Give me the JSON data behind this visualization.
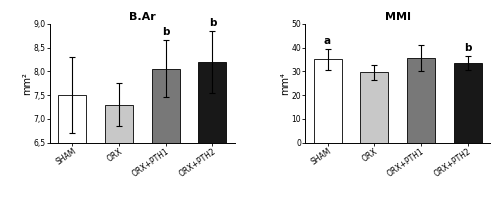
{
  "bar_chart1": {
    "title": "B.Ar",
    "ylabel": "mm²",
    "categories": [
      "SHAM",
      "ORX",
      "ORX+PTH1",
      "ORX+PTH2"
    ],
    "values": [
      7.5,
      7.3,
      8.05,
      8.2
    ],
    "errors": [
      0.8,
      0.45,
      0.6,
      0.65
    ],
    "colors": [
      "#ffffff",
      "#c8c8c8",
      "#787878",
      "#181818"
    ],
    "ylim": [
      6.5,
      9.0
    ],
    "yticks": [
      6.5,
      7.0,
      7.5,
      8.0,
      8.5,
      9.0
    ],
    "ytick_labels": [
      "6,5",
      "7,0",
      "7,5",
      "8,0",
      "8,5",
      "9,0"
    ],
    "annotations": [
      {
        "text": "b",
        "bar_index": 2,
        "bold": true
      },
      {
        "text": "b",
        "bar_index": 3,
        "bold": true
      }
    ]
  },
  "bar_chart2": {
    "title": "MMI",
    "ylabel": "mm⁴",
    "categories": [
      "SHAM",
      "ORX",
      "ORX+PTH1",
      "ORX+PTH2"
    ],
    "values": [
      35.0,
      29.5,
      35.5,
      33.5
    ],
    "errors": [
      4.5,
      3.0,
      5.5,
      3.0
    ],
    "colors": [
      "#ffffff",
      "#c8c8c8",
      "#787878",
      "#181818"
    ],
    "ylim": [
      0,
      50
    ],
    "yticks": [
      0,
      10,
      20,
      30,
      40,
      50
    ],
    "ytick_labels": [
      "0",
      "10",
      "20",
      "30",
      "40",
      "50"
    ],
    "annotations": [
      {
        "text": "a",
        "bar_index": 0,
        "bold": true
      },
      {
        "text": "b",
        "bar_index": 3,
        "bold": true
      }
    ]
  },
  "bar_width": 0.6,
  "edge_color": "#000000",
  "error_capsize": 2,
  "error_linewidth": 0.8,
  "tick_fontsize": 5.5,
  "label_fontsize": 7,
  "title_fontsize": 8,
  "annotation_fontsize": 7.5,
  "background_color": "#ffffff"
}
